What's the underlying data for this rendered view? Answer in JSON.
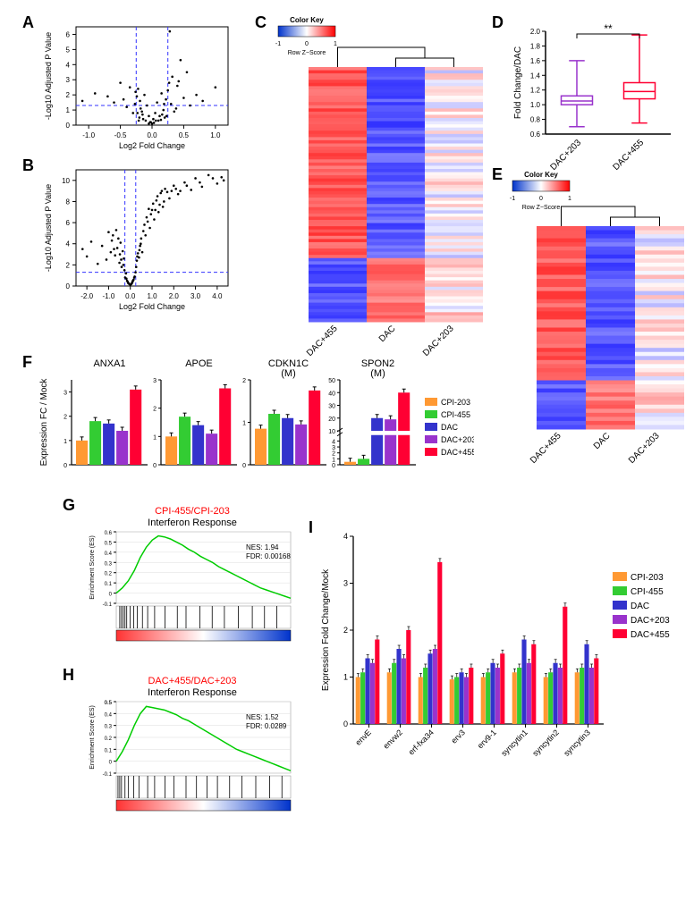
{
  "panel_labels": {
    "A": "A",
    "B": "B",
    "C": "C",
    "D": "D",
    "E": "E",
    "F": "F",
    "G": "G",
    "H": "H",
    "I": "I"
  },
  "colors": {
    "cpi203": "#ff9933",
    "cpi455": "#33cc33",
    "dac": "#3333cc",
    "dac203": "#9933cc",
    "dac455": "#ff0033",
    "heatmap_low": "#0033cc",
    "heatmap_mid": "#ffffff",
    "heatmap_high": "#ff0000",
    "volcano_point": "#000000",
    "volcano_line": "#3333ff",
    "gsea_line": "#00cc00",
    "gsea_red": "#ff3333",
    "gsea_blue": "#0033cc"
  },
  "volcano_A": {
    "xlabel": "Log2 Fold Change",
    "ylabel": "-Log10 Adjusted P Value",
    "xlim": [
      -1.2,
      1.2
    ],
    "ylim": [
      0,
      6.5
    ],
    "xticks": [
      -1.0,
      -0.5,
      0.0,
      0.5,
      1.0
    ],
    "yticks": [
      0,
      1,
      2,
      3,
      4,
      5,
      6
    ],
    "vlines": [
      -0.25,
      0.25
    ],
    "hline": 1.3,
    "points": [
      [
        -1.1,
        1.6
      ],
      [
        -0.9,
        2.1
      ],
      [
        -0.6,
        1.5
      ],
      [
        -0.5,
        2.8
      ],
      [
        -0.4,
        1.2
      ],
      [
        -0.3,
        0.8
      ],
      [
        -0.27,
        1.4
      ],
      [
        -0.26,
        2.2
      ],
      [
        -0.24,
        1.9
      ],
      [
        -0.22,
        2.4
      ],
      [
        -0.2,
        0.5
      ],
      [
        -0.18,
        1.1
      ],
      [
        -0.15,
        0.7
      ],
      [
        -0.12,
        2.0
      ],
      [
        -0.1,
        0.3
      ],
      [
        -0.08,
        1.3
      ],
      [
        -0.05,
        0.6
      ],
      [
        -0.02,
        0.2
      ],
      [
        0.0,
        0.1
      ],
      [
        0.02,
        0.4
      ],
      [
        0.05,
        0.8
      ],
      [
        0.08,
        1.5
      ],
      [
        0.1,
        0.3
      ],
      [
        0.12,
        0.6
      ],
      [
        0.15,
        2.1
      ],
      [
        0.18,
        1.0
      ],
      [
        0.2,
        0.5
      ],
      [
        0.22,
        1.7
      ],
      [
        0.25,
        2.3
      ],
      [
        0.27,
        2.8
      ],
      [
        0.3,
        1.4
      ],
      [
        0.35,
        0.9
      ],
      [
        0.4,
        2.6
      ],
      [
        0.45,
        4.3
      ],
      [
        0.5,
        1.8
      ],
      [
        0.6,
        1.3
      ],
      [
        0.7,
        2.0
      ],
      [
        0.8,
        1.6
      ],
      [
        1.0,
        2.5
      ],
      [
        0.28,
        6.2
      ],
      [
        -0.05,
        0.1
      ],
      [
        -0.03,
        0.2
      ],
      [
        0.03,
        0.15
      ],
      [
        0.06,
        0.3
      ],
      [
        -0.14,
        0.4
      ],
      [
        0.14,
        0.35
      ],
      [
        -0.16,
        0.9
      ],
      [
        0.16,
        0.7
      ],
      [
        -0.19,
        1.6
      ],
      [
        0.19,
        1.4
      ],
      [
        -0.21,
        0.3
      ],
      [
        0.23,
        0.6
      ],
      [
        -0.23,
        0.8
      ],
      [
        0.32,
        3.2
      ],
      [
        -0.35,
        2.5
      ],
      [
        0.38,
        1.1
      ],
      [
        -0.45,
        1.7
      ],
      [
        0.55,
        3.5
      ],
      [
        -0.7,
        1.9
      ],
      [
        0.42,
        2.9
      ]
    ]
  },
  "volcano_B": {
    "xlabel": "Log2 Fold Change",
    "ylabel": "-Log10 Adjusted P Value",
    "xlim": [
      -2.5,
      4.5
    ],
    "ylim": [
      0,
      11
    ],
    "xticks": [
      -2,
      -1,
      0,
      1,
      2,
      3,
      4
    ],
    "yticks": [
      0,
      2,
      4,
      6,
      8,
      10
    ],
    "vlines": [
      -0.25,
      0.25
    ],
    "hline": 1.3,
    "points": [
      [
        -2.2,
        3.5
      ],
      [
        -2.0,
        2.8
      ],
      [
        -1.8,
        4.2
      ],
      [
        -1.5,
        2.1
      ],
      [
        -1.3,
        3.8
      ],
      [
        -1.1,
        2.5
      ],
      [
        -1.0,
        5.1
      ],
      [
        -0.9,
        3.2
      ],
      [
        -0.8,
        4.8
      ],
      [
        -0.7,
        2.9
      ],
      [
        -0.6,
        3.6
      ],
      [
        -0.5,
        2.2
      ],
      [
        -0.45,
        4.1
      ],
      [
        -0.4,
        1.8
      ],
      [
        -0.35,
        3.3
      ],
      [
        -0.3,
        2.6
      ],
      [
        -0.27,
        1.5
      ],
      [
        -0.24,
        0.8
      ],
      [
        -0.2,
        1.2
      ],
      [
        -0.15,
        0.5
      ],
      [
        -0.1,
        0.3
      ],
      [
        -0.05,
        0.2
      ],
      [
        0.0,
        0.1
      ],
      [
        0.05,
        0.2
      ],
      [
        0.1,
        0.4
      ],
      [
        0.15,
        0.6
      ],
      [
        0.2,
        0.9
      ],
      [
        0.24,
        1.3
      ],
      [
        0.27,
        1.8
      ],
      [
        0.3,
        2.4
      ],
      [
        0.35,
        3.1
      ],
      [
        0.4,
        2.7
      ],
      [
        0.45,
        3.8
      ],
      [
        0.5,
        4.5
      ],
      [
        0.55,
        3.2
      ],
      [
        0.6,
        5.2
      ],
      [
        0.7,
        4.8
      ],
      [
        0.8,
        6.1
      ],
      [
        0.9,
        5.5
      ],
      [
        1.0,
        7.2
      ],
      [
        1.1,
        6.3
      ],
      [
        1.2,
        8.1
      ],
      [
        1.3,
        7.0
      ],
      [
        1.4,
        8.8
      ],
      [
        1.5,
        7.5
      ],
      [
        1.6,
        9.2
      ],
      [
        1.8,
        8.3
      ],
      [
        2.0,
        9.5
      ],
      [
        2.2,
        8.7
      ],
      [
        2.5,
        9.8
      ],
      [
        2.8,
        9.1
      ],
      [
        3.0,
        10.2
      ],
      [
        3.3,
        9.4
      ],
      [
        3.6,
        10.5
      ],
      [
        4.0,
        9.7
      ],
      [
        4.3,
        10.0
      ],
      [
        -0.55,
        4.5
      ],
      [
        -0.65,
        5.3
      ],
      [
        0.65,
        5.8
      ],
      [
        0.75,
        6.5
      ],
      [
        0.85,
        7.3
      ],
      [
        0.95,
        6.8
      ],
      [
        1.05,
        7.8
      ],
      [
        1.15,
        7.2
      ],
      [
        1.25,
        8.5
      ],
      [
        1.35,
        7.7
      ],
      [
        1.45,
        9.0
      ],
      [
        1.55,
        8.0
      ],
      [
        1.7,
        8.9
      ],
      [
        1.9,
        9.0
      ],
      [
        2.1,
        9.2
      ],
      [
        2.3,
        9.0
      ],
      [
        2.6,
        9.5
      ],
      [
        3.2,
        9.8
      ],
      [
        3.8,
        10.2
      ],
      [
        4.2,
        10.3
      ],
      [
        -0.12,
        0.4
      ],
      [
        0.12,
        0.5
      ],
      [
        -0.18,
        0.7
      ],
      [
        0.18,
        0.8
      ],
      [
        -0.08,
        0.25
      ],
      [
        0.08,
        0.3
      ],
      [
        -0.32,
        2.0
      ],
      [
        0.32,
        2.8
      ],
      [
        -0.42,
        2.5
      ],
      [
        0.42,
        3.4
      ],
      [
        -0.48,
        3.0
      ],
      [
        0.48,
        4.0
      ],
      [
        -0.75,
        3.5
      ],
      [
        -0.85,
        4.3
      ]
    ]
  },
  "heatmap_colorkey": {
    "title": "Color Key",
    "sublabel": "Row Z−Score",
    "ticks": [
      -1,
      0,
      1
    ]
  },
  "heatmap_C": {
    "columns": [
      "DAC+455",
      "DAC",
      "DAC+203"
    ],
    "nrows": 80
  },
  "heatmap_E": {
    "columns": [
      "DAC+455",
      "DAC",
      "DAC+203"
    ],
    "nrows": 50
  },
  "boxplot_D": {
    "ylabel": "Fold Change/DAC",
    "ylim": [
      0.6,
      2.0
    ],
    "yticks": [
      0.6,
      0.8,
      1.0,
      1.2,
      1.4,
      1.6,
      1.8,
      2.0
    ],
    "significance": "**",
    "groups": [
      {
        "label": "DAC+203",
        "color": "#9933cc",
        "min": 0.7,
        "q1": 1.0,
        "med": 1.05,
        "q3": 1.12,
        "max": 1.6
      },
      {
        "label": "DAC+455",
        "color": "#ff0033",
        "min": 0.75,
        "q1": 1.08,
        "med": 1.18,
        "q3": 1.3,
        "max": 1.95
      }
    ]
  },
  "barpanel_F": {
    "ylabel": "Expression FC / Mock",
    "legend": [
      "CPI-203",
      "CPI-455",
      "DAC",
      "DAC+203",
      "DAC+455"
    ],
    "charts": [
      {
        "title": "ANXA1",
        "ylim": [
          0,
          3.5
        ],
        "yticks": [
          0,
          1,
          2,
          3
        ],
        "values": [
          1.0,
          1.8,
          1.7,
          1.4,
          3.1
        ]
      },
      {
        "title": "APOE",
        "ylim": [
          0,
          3.0
        ],
        "yticks": [
          0,
          1,
          2,
          3
        ],
        "values": [
          1.0,
          1.7,
          1.4,
          1.1,
          2.7
        ]
      },
      {
        "title": "CDKN1C\n(M)",
        "ylim": [
          0,
          2.0
        ],
        "yticks": [
          0,
          1,
          2
        ],
        "values": [
          0.85,
          1.2,
          1.1,
          0.95,
          1.75
        ]
      },
      {
        "title": "SPON2\n(M)",
        "ylim": [
          0,
          50
        ],
        "yticks": [
          0,
          1,
          2,
          3,
          4,
          10,
          20,
          30,
          40,
          50
        ],
        "break": [
          5,
          10
        ],
        "values": [
          0.5,
          1.0,
          20,
          19,
          40
        ]
      }
    ]
  },
  "gsea_G": {
    "title_red": "CPI-455/CPI-203",
    "title": "Interferon Response",
    "ylabel": "Enrichment Score (ES)",
    "nes": "NES: 1.94",
    "fdr": "FDR: 0.00168",
    "ylim": [
      -0.1,
      0.6
    ],
    "yticks": [
      -0.1,
      0,
      0.1,
      0.2,
      0.3,
      0.4,
      0.5,
      0.6
    ],
    "curve": [
      0,
      0.05,
      0.12,
      0.22,
      0.35,
      0.45,
      0.52,
      0.56,
      0.55,
      0.53,
      0.5,
      0.47,
      0.43,
      0.4,
      0.36,
      0.33,
      0.3,
      0.26,
      0.23,
      0.2,
      0.17,
      0.14,
      0.11,
      0.08,
      0.05,
      0.03,
      0.01,
      -0.01,
      -0.03,
      -0.05
    ],
    "ticks_pos": [
      0.02,
      0.03,
      0.04,
      0.05,
      0.06,
      0.08,
      0.1,
      0.12,
      0.15,
      0.18,
      0.22,
      0.28,
      0.35,
      0.4,
      0.48,
      0.55,
      0.62,
      0.7,
      0.78,
      0.85,
      0.92
    ]
  },
  "gsea_H": {
    "title_red": "DAC+455/DAC+203",
    "title": "Interferon Response",
    "ylabel": "Enrichment Score (ES)",
    "nes": "NES: 1.52",
    "fdr": "FDR: 0.0289",
    "ylim": [
      -0.1,
      0.5
    ],
    "yticks": [
      -0.1,
      0,
      0.1,
      0.2,
      0.3,
      0.4,
      0.5,
      0.5
    ],
    "curve": [
      0,
      0.08,
      0.18,
      0.3,
      0.4,
      0.46,
      0.45,
      0.44,
      0.43,
      0.41,
      0.39,
      0.36,
      0.34,
      0.31,
      0.28,
      0.25,
      0.22,
      0.19,
      0.16,
      0.13,
      0.1,
      0.08,
      0.06,
      0.04,
      0.02,
      0.0,
      -0.02,
      -0.04,
      -0.06,
      -0.08
    ],
    "ticks_pos": [
      0.01,
      0.02,
      0.03,
      0.05,
      0.07,
      0.1,
      0.13,
      0.18,
      0.22,
      0.28,
      0.33,
      0.4,
      0.46,
      0.52,
      0.58,
      0.65,
      0.72,
      0.8,
      0.88,
      0.95
    ]
  },
  "barpanel_I": {
    "ylabel": "Expression Fold Change/Mock",
    "ylim": [
      0,
      4
    ],
    "yticks": [
      0,
      1,
      2,
      3,
      4
    ],
    "categories": [
      "envE",
      "envw2",
      "erf-fxa34",
      "erv3",
      "erv9-1",
      "syncytin1",
      "syncytin2",
      "syncytin3"
    ],
    "legend": [
      "CPI-203",
      "CPI-455",
      "DAC",
      "DAC+203",
      "DAC+455"
    ],
    "values": [
      [
        1.0,
        1.1,
        1.4,
        1.3,
        1.8
      ],
      [
        1.1,
        1.3,
        1.6,
        1.4,
        2.0
      ],
      [
        1.0,
        1.2,
        1.5,
        1.6,
        3.45
      ],
      [
        0.95,
        1.0,
        1.1,
        1.0,
        1.2
      ],
      [
        1.0,
        1.1,
        1.3,
        1.2,
        1.5
      ],
      [
        1.1,
        1.2,
        1.8,
        1.3,
        1.7
      ],
      [
        1.0,
        1.1,
        1.3,
        1.2,
        2.5
      ],
      [
        1.1,
        1.2,
        1.7,
        1.2,
        1.4
      ]
    ]
  }
}
